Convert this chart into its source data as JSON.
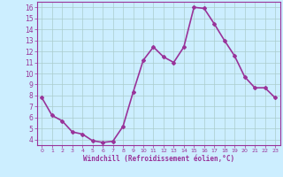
{
  "x": [
    0,
    1,
    2,
    3,
    4,
    5,
    6,
    7,
    8,
    9,
    10,
    11,
    12,
    13,
    14,
    15,
    16,
    17,
    18,
    19,
    20,
    21,
    22,
    23
  ],
  "y": [
    7.8,
    6.2,
    5.7,
    4.7,
    4.5,
    3.9,
    3.75,
    3.85,
    5.2,
    8.3,
    11.2,
    12.4,
    11.5,
    11.0,
    12.4,
    16.0,
    15.9,
    14.5,
    13.0,
    11.6,
    9.7,
    8.7,
    8.7,
    7.8
  ],
  "line_color": "#993399",
  "marker": "D",
  "marker_size": 2,
  "bg_color": "#cceeff",
  "grid_color": "#aacccc",
  "xlabel": "Windchill (Refroidissement éolien,°C)",
  "xlabel_color": "#993399",
  "tick_color": "#993399",
  "ylim": [
    3.5,
    16.5
  ],
  "xlim": [
    -0.5,
    23.5
  ],
  "yticks": [
    4,
    5,
    6,
    7,
    8,
    9,
    10,
    11,
    12,
    13,
    14,
    15,
    16
  ],
  "xticks": [
    0,
    1,
    2,
    3,
    4,
    5,
    6,
    7,
    8,
    9,
    10,
    11,
    12,
    13,
    14,
    15,
    16,
    17,
    18,
    19,
    20,
    21,
    22,
    23
  ],
  "linewidth": 1.2
}
